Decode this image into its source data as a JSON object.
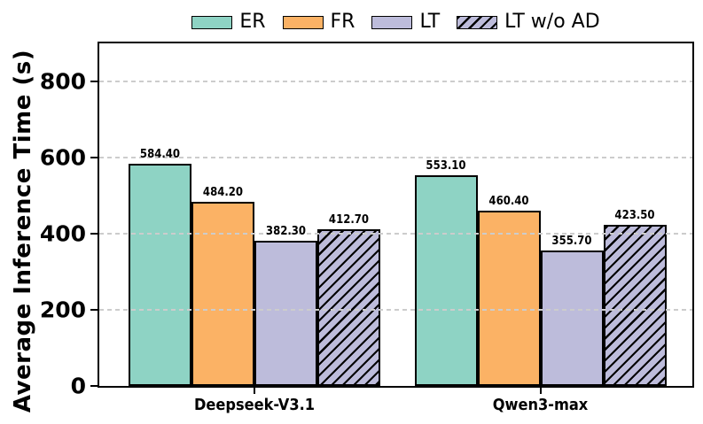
{
  "chart_data": {
    "type": "bar",
    "title": "",
    "ylabel": "Average Inference Time (s)",
    "xlabel": "",
    "categories": [
      "Deepseek-V3.1",
      "Qwen3-max"
    ],
    "series": [
      {
        "name": "ER",
        "values": [
          584.4,
          553.1
        ],
        "color": "#8ed3c4",
        "hatch": false
      },
      {
        "name": "FR",
        "values": [
          484.2,
          460.4
        ],
        "color": "#fbb265",
        "hatch": false
      },
      {
        "name": "LT",
        "values": [
          382.3,
          355.7
        ],
        "color": "#bdbcdb",
        "hatch": false
      },
      {
        "name": "LT w/o AD",
        "values": [
          412.7,
          423.5
        ],
        "color": "#bdbcdb",
        "hatch": true
      }
    ],
    "value_labels": [
      [
        "584.40",
        "553.10"
      ],
      [
        "484.20",
        "460.40"
      ],
      [
        "382.30",
        "355.70"
      ],
      [
        "412.70",
        "423.50"
      ]
    ],
    "ylim": [
      0,
      900
    ],
    "yticks": [
      0,
      200,
      400,
      600,
      800
    ],
    "grid": true,
    "grid_style": "dashed",
    "legend_position": "top-center",
    "colors": {
      "bar_edge": "#000000",
      "gridline": "#cccccc",
      "axis": "#000000",
      "text": "#000000",
      "background": "#ffffff"
    }
  }
}
